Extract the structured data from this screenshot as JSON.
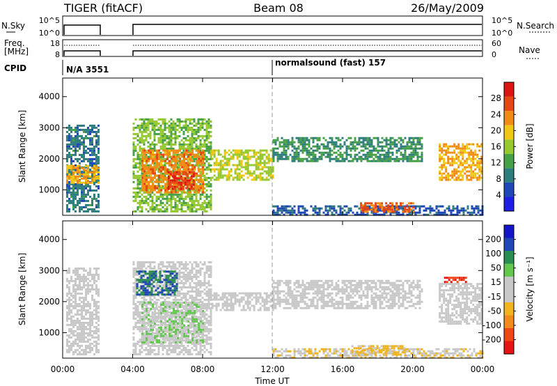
{
  "header": {
    "radar": "TIGER (fitACF)",
    "beam": "Beam 08",
    "date": "26/May/2009"
  },
  "noise_panel": {
    "left_label": "N.Sky",
    "right_label": "N.Search",
    "left_ticks": [
      "10^5",
      "10^0"
    ],
    "right_ticks": [
      "10^5",
      "10^0"
    ]
  },
  "freq_panel": {
    "left_label_1": "Freq.",
    "left_label_2": "[MHz]",
    "right_label": "Nave",
    "left_ticks": [
      "18",
      "8"
    ],
    "right_ticks": [
      "60",
      "0"
    ]
  },
  "cpid": {
    "label": "CPID",
    "segment_1": "N/A 3551",
    "segment_2": "normalsound (fast) 157"
  },
  "x_axis": {
    "label": "Time UT",
    "ticks": [
      "00:00",
      "04:00",
      "08:00",
      "12:00",
      "16:00",
      "20:00",
      "00:00"
    ]
  },
  "colors": {
    "power_scale": [
      "#1e1ee6",
      "#1e46b4",
      "#2d7d7d",
      "#46a046",
      "#96c832",
      "#f0c814",
      "#f08c14",
      "#e64614",
      "#dc1414"
    ],
    "velocity_scale": [
      "#e61414",
      "#f04614",
      "#f08c1e",
      "#f0b41e",
      "#c8c8c8",
      "#c8c8c8",
      "#64c850",
      "#2d8c50",
      "#1e46b4",
      "#1414c8"
    ]
  },
  "chart_data": [
    {
      "type": "heatmap",
      "title": "",
      "xlabel": "",
      "ylabel": "Slant Range [km]",
      "xlim": [
        0,
        24
      ],
      "ylim": [
        180,
        4600
      ],
      "y_ticks": [
        "1000",
        "2000",
        "3000",
        "4000"
      ],
      "colorbar": {
        "label": "Power [dB]",
        "ticks": [
          "4",
          "8",
          "12",
          "16",
          "20",
          "24",
          "28"
        ],
        "range": [
          0,
          30
        ]
      },
      "regions": [
        {
          "t0": 0.2,
          "t1": 2.0,
          "r0": 300,
          "r1": 3100,
          "value": 8
        },
        {
          "t0": 0.2,
          "t1": 2.0,
          "r0": 1200,
          "r1": 1800,
          "value": 20
        },
        {
          "t0": 4.0,
          "t1": 8.5,
          "r0": 300,
          "r1": 3300,
          "value": 14
        },
        {
          "t0": 4.5,
          "t1": 8.0,
          "r0": 900,
          "r1": 2300,
          "value": 22
        },
        {
          "t0": 6.0,
          "t1": 7.5,
          "r0": 1000,
          "r1": 1600,
          "value": 26
        },
        {
          "t0": 8.5,
          "t1": 12.0,
          "r0": 1300,
          "r1": 2300,
          "value": 16
        },
        {
          "t0": 12.0,
          "t1": 20.5,
          "r0": 1900,
          "r1": 2700,
          "value": 10
        },
        {
          "t0": 12.0,
          "t1": 24.0,
          "r0": 200,
          "r1": 500,
          "value": 6
        },
        {
          "t0": 17.0,
          "t1": 20.0,
          "r0": 300,
          "r1": 600,
          "value": 24
        },
        {
          "t0": 21.5,
          "t1": 24.0,
          "r0": 1300,
          "r1": 2500,
          "value": 20
        }
      ]
    },
    {
      "type": "heatmap",
      "title": "",
      "xlabel": "Time UT",
      "ylabel": "Slant Range [km]",
      "xlim": [
        0,
        24
      ],
      "ylim": [
        180,
        4600
      ],
      "y_ticks": [
        "1000",
        "2000",
        "3000",
        "4000"
      ],
      "colorbar": {
        "label": "Velocity [m s⁻¹]",
        "ticks": [
          "-200",
          "-100",
          "-50",
          "-15",
          "15",
          "50",
          "100",
          "200"
        ],
        "range": [
          -250,
          250
        ]
      },
      "regions": [
        {
          "t0": 0.2,
          "t1": 2.0,
          "r0": 300,
          "r1": 3100,
          "value": 0
        },
        {
          "t0": 4.0,
          "t1": 8.5,
          "r0": 300,
          "r1": 3300,
          "value": 0
        },
        {
          "t0": 4.2,
          "t1": 6.5,
          "r0": 2200,
          "r1": 3000,
          "value": 150
        },
        {
          "t0": 4.5,
          "t1": 8.0,
          "r0": 700,
          "r1": 2000,
          "value": 45
        },
        {
          "t0": 8.5,
          "t1": 12.0,
          "r0": 1700,
          "r1": 2300,
          "value": 0
        },
        {
          "t0": 12.0,
          "t1": 20.5,
          "r0": 1800,
          "r1": 2700,
          "value": 0
        },
        {
          "t0": 12.0,
          "t1": 24.0,
          "r0": 200,
          "r1": 500,
          "value": -40
        },
        {
          "t0": 16.5,
          "t1": 19.5,
          "r0": 300,
          "r1": 600,
          "value": -60
        },
        {
          "t0": 21.5,
          "t1": 24.0,
          "r0": 1300,
          "r1": 2600,
          "value": 0
        },
        {
          "t0": 21.8,
          "t1": 23.0,
          "r0": 2600,
          "r1": 2800,
          "value": -200
        }
      ]
    }
  ]
}
